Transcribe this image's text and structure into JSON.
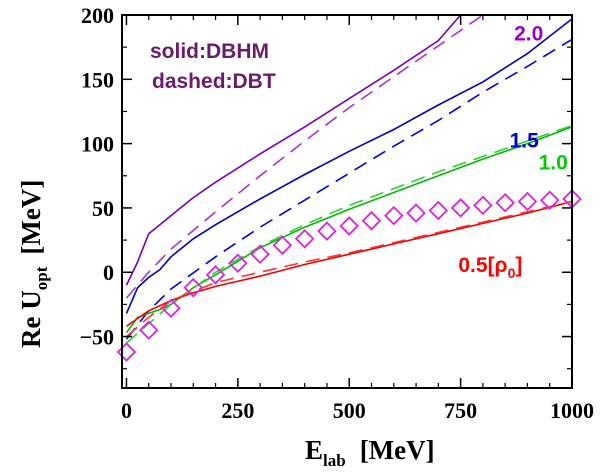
{
  "chart_data": {
    "type": "line",
    "x_axis": {
      "title_main": "E",
      "title_sub": "lab",
      "title_unit": "[MeV]",
      "ticks": [
        0,
        250,
        500,
        750,
        1000
      ],
      "tick_labels": [
        "0",
        "250",
        "500",
        "750",
        "1000"
      ],
      "xlim": [
        -10,
        1000
      ]
    },
    "y_axis": {
      "title_main": "Re U",
      "title_sub": "opt",
      "title_unit": "[MeV]",
      "ticks": [
        -50,
        0,
        50,
        100,
        150,
        200
      ],
      "tick_labels": [
        "−50",
        "0",
        "50",
        "100",
        "150",
        "200"
      ],
      "ylim": [
        -90,
        200
      ]
    },
    "legend_text": {
      "solid": "solid:DBHM",
      "dashed": "dashed:DBT"
    },
    "annotations": [
      {
        "text": "2.0",
        "color": "#9900cc",
        "x": 870,
        "y": 180
      },
      {
        "text": "1.5",
        "color": "#0000cc",
        "x": 860,
        "y": 97
      },
      {
        "text": "1.0",
        "color": "#00cc00",
        "x": 925,
        "y": 80
      },
      {
        "text": "0.5[ρ",
        "sub": "0",
        "close": "]",
        "color": "#ff0000",
        "x": 745,
        "y": 0
      }
    ],
    "series": [
      {
        "density": "2.0",
        "model": "DBHM",
        "style": "solid",
        "color": "#7700bb",
        "x": [
          0,
          25,
          50,
          75,
          100,
          150,
          200,
          300,
          400,
          500,
          600,
          700,
          750
        ],
        "y": [
          -10,
          8,
          30,
          37,
          44,
          58,
          70,
          92,
          113,
          135,
          157,
          180,
          200
        ]
      },
      {
        "density": "2.0",
        "model": "DBT",
        "style": "dashed",
        "color": "#aa33cc",
        "x": [
          0,
          50,
          100,
          200,
          300,
          400,
          500,
          600,
          700,
          800
        ],
        "y": [
          -20,
          0,
          18,
          47,
          75,
          102,
          128,
          152,
          176,
          200
        ]
      },
      {
        "density": "1.5",
        "model": "DBHM",
        "style": "solid",
        "color": "#0000bb",
        "x": [
          0,
          25,
          50,
          75,
          100,
          150,
          200,
          300,
          400,
          500,
          600,
          700,
          800,
          900,
          1000
        ],
        "y": [
          -32,
          -12,
          -4,
          2,
          12,
          26,
          37,
          57,
          76,
          94,
          111,
          130,
          148,
          170,
          197
        ]
      },
      {
        "density": "1.5",
        "model": "DBT",
        "style": "dashed",
        "color": "#0000dd",
        "x": [
          0,
          50,
          100,
          200,
          300,
          400,
          500,
          600,
          700,
          800,
          900,
          1000
        ],
        "y": [
          -52,
          -30,
          -13,
          12,
          35,
          56,
          77,
          98,
          118,
          140,
          160,
          181
        ]
      },
      {
        "density": "1.0",
        "model": "DBHM",
        "style": "solid",
        "color": "#00bb00",
        "x": [
          0,
          25,
          50,
          75,
          100,
          150,
          200,
          300,
          400,
          500,
          600,
          700,
          800,
          900,
          1000
        ],
        "y": [
          -47,
          -35,
          -32,
          -29,
          -25,
          -12,
          -2,
          19,
          35,
          49,
          62,
          75,
          88,
          100,
          113
        ]
      },
      {
        "density": "1.0",
        "model": "DBT",
        "style": "dashed",
        "color": "#33cc33",
        "x": [
          0,
          50,
          100,
          200,
          300,
          400,
          500,
          600,
          700,
          800,
          900,
          1000
        ],
        "y": [
          -55,
          -40,
          -25,
          0,
          20,
          37,
          52,
          65,
          78,
          90,
          102,
          114
        ]
      },
      {
        "density": "0.5",
        "model": "DBHM",
        "style": "solid",
        "color": "#ee0000",
        "x": [
          0,
          25,
          50,
          75,
          100,
          150,
          200,
          300,
          400,
          500,
          600,
          700,
          800,
          900,
          1000
        ],
        "y": [
          -42,
          -36,
          -30,
          -26,
          -22,
          -16,
          -11,
          -3,
          6,
          14,
          22,
          30,
          38,
          46,
          55
        ]
      },
      {
        "density": "0.5",
        "model": "DBT",
        "style": "dashed",
        "color": "#ff3333",
        "x": [
          0,
          50,
          100,
          200,
          300,
          400,
          500,
          600,
          700,
          800,
          900,
          1000
        ],
        "y": [
          -50,
          -35,
          -22,
          -8,
          0,
          8,
          15,
          23,
          31,
          39,
          47,
          55
        ]
      }
    ],
    "markers": {
      "shape": "diamond",
      "color": "#dd22dd",
      "x": [
        0,
        50,
        100,
        150,
        200,
        250,
        300,
        350,
        400,
        450,
        500,
        550,
        600,
        650,
        700,
        750,
        800,
        850,
        900,
        950,
        1000
      ],
      "y": [
        -62,
        -45,
        -28,
        -12,
        -2,
        7,
        14,
        21,
        26,
        32,
        36,
        40,
        44,
        46,
        48,
        50,
        52,
        54,
        55,
        56,
        57
      ]
    }
  }
}
